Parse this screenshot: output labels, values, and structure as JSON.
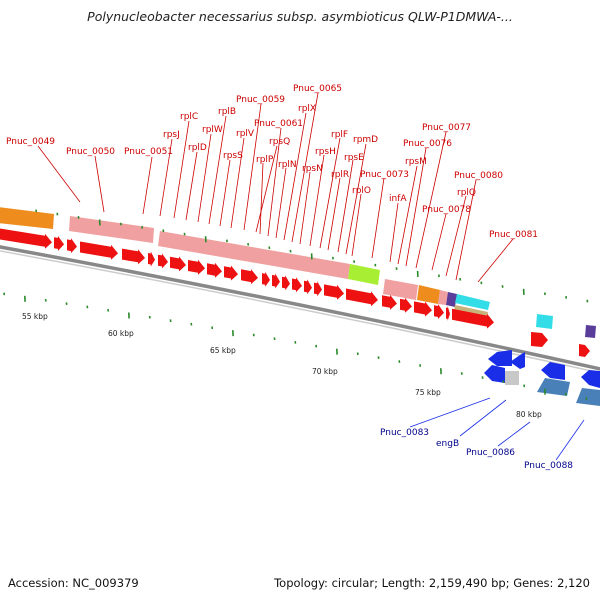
{
  "title": "Polynucleobacter necessarius subsp. asymbioticus QLW-P1DMWA-...",
  "footer": {
    "accession": "Accession: NC_009379",
    "summary": "Topology: circular; Length: 2,159,490 bp; Genes: 2,120"
  },
  "colors": {
    "forward_cds": "#ee1111",
    "ribosomal_block": "#f0a0a0",
    "orange_gene": "#ee8c1e",
    "green_gene": "#a8ee33",
    "cyan_gene": "#33dde8",
    "reverse_cds": "#1a2ee8",
    "steel_gene": "#4a80b8",
    "tick": "#2a8a2a",
    "backbone": "#888888",
    "upper_label": "#cc0000",
    "lower_label": "#00008b"
  },
  "kbp_ticks": [
    "55 kbp",
    "60 kbp",
    "65 kbp",
    "70 kbp",
    "75 kbp",
    "80 kbp"
  ],
  "upper_gene_labels": [
    "Pnuc_0049",
    "Pnuc_0050",
    "Pnuc_0051",
    "rpsJ",
    "rplC",
    "rplD",
    "rplW",
    "rplB",
    "rpsS",
    "rplV",
    "Pnuc_0059",
    "rpsQ",
    "rplP",
    "Pnuc_0061",
    "rplN",
    "rplX",
    "Pnuc_0065",
    "rpsN",
    "rpsH",
    "rplF",
    "rplR",
    "rpsE",
    "rpmD",
    "rplO",
    "Pnuc_0073",
    "infA",
    "rpsM",
    "Pnuc_0076",
    "Pnuc_0077",
    "Pnuc_0078",
    "rplQ",
    "Pnuc_0080",
    "Pnuc_0081"
  ],
  "lower_gene_labels": [
    "Pnuc_0083",
    "engB",
    "Pnuc_0086",
    "Pnuc_0088"
  ]
}
